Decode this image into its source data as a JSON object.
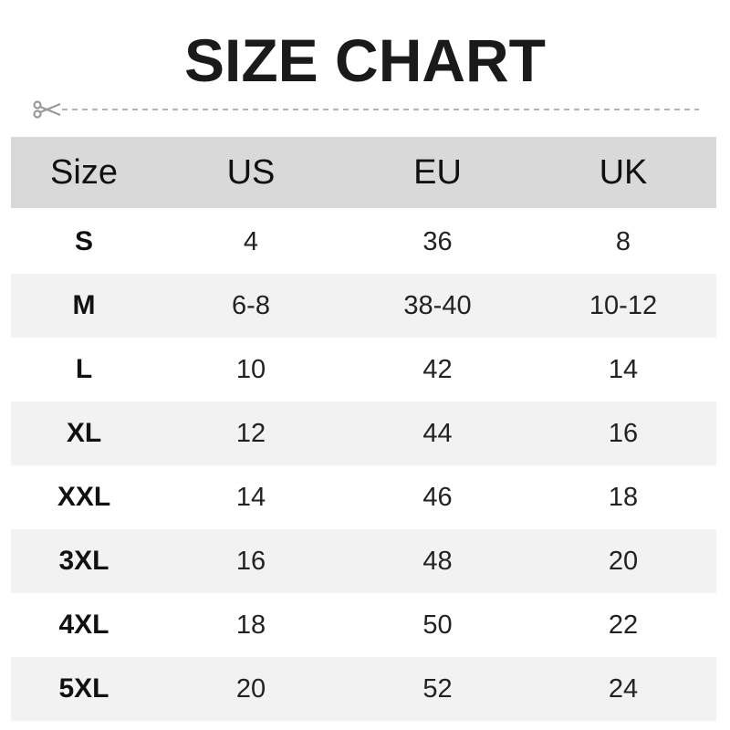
{
  "title": "SIZE CHART",
  "colors": {
    "header_bg": "#d9d9d9",
    "alt_row_bg": "#f2f2f2",
    "cut_line": "#999999"
  },
  "cut_line_icon": "scissors-icon",
  "table": {
    "headers": [
      "Size",
      "US",
      "EU",
      "UK"
    ],
    "rows": [
      [
        "S",
        "4",
        "36",
        "8"
      ],
      [
        "M",
        "6-8",
        "38-40",
        "10-12"
      ],
      [
        "L",
        "10",
        "42",
        "14"
      ],
      [
        "XL",
        "12",
        "44",
        "16"
      ],
      [
        "XXL",
        "14",
        "46",
        "18"
      ],
      [
        "3XL",
        "16",
        "48",
        "20"
      ],
      [
        "4XL",
        "18",
        "50",
        "22"
      ],
      [
        "5XL",
        "20",
        "52",
        "24"
      ]
    ]
  }
}
